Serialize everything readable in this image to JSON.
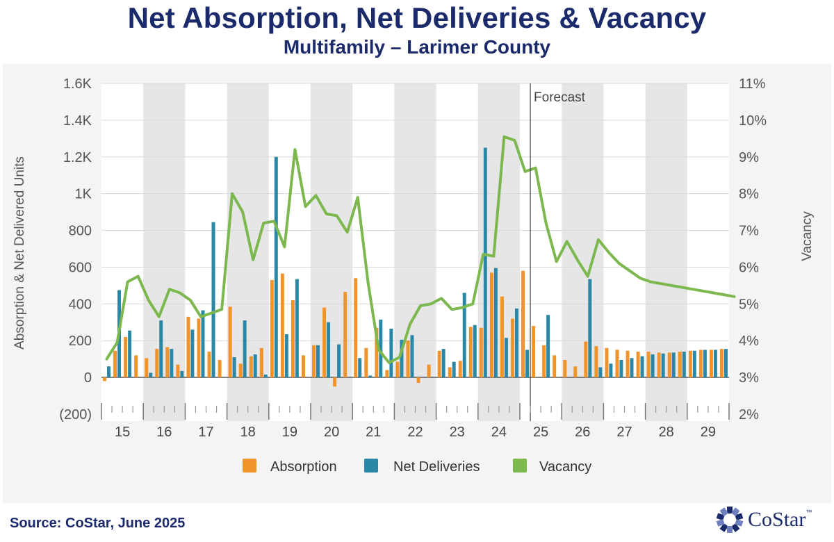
{
  "header": {
    "title": "Net Absorption, Net Deliveries & Vacancy",
    "subtitle": "Multifamily – Larimer County"
  },
  "footer": {
    "source": "Source: CoStar, June 2025",
    "logo_text": "CoStar",
    "logo_tm": "™"
  },
  "colors": {
    "absorption": "#f0932b",
    "net_deliveries": "#2a87a6",
    "vacancy": "#7cb84e",
    "title": "#1b2a6b"
  },
  "chart_data": {
    "type": "bar",
    "title": "Net Absorption, Net Deliveries & Vacancy",
    "subtitle": "Multifamily – Larimer County",
    "ylabel": "Absorption & Net Delivered Units",
    "y2label": "Vacancy",
    "ylim": [
      -200,
      1600
    ],
    "y2lim": [
      2,
      11
    ],
    "yticks": [
      "(200)",
      "0",
      "200",
      "400",
      "600",
      "800",
      "1K",
      "1.2K",
      "1.4K",
      "1.6K"
    ],
    "y2ticks": [
      "2%",
      "3%",
      "4%",
      "5%",
      "6%",
      "7%",
      "8%",
      "9%",
      "10%",
      "11%"
    ],
    "years": [
      "15",
      "16",
      "17",
      "18",
      "19",
      "20",
      "21",
      "22",
      "23",
      "24",
      "25",
      "26",
      "27",
      "28",
      "29"
    ],
    "quarters_per_year": 4,
    "forecast_label": "Forecast",
    "forecast_start_quarter": "25 Q2",
    "grid": true,
    "legend_position": "bottom",
    "series": [
      {
        "name": "Absorption",
        "type": "bar",
        "values": [
          -20,
          145,
          220,
          120,
          105,
          155,
          165,
          70,
          330,
          320,
          140,
          95,
          385,
          75,
          115,
          160,
          530,
          565,
          420,
          120,
          175,
          380,
          -50,
          465,
          540,
          160,
          270,
          40,
          85,
          200,
          -30,
          70,
          145,
          55,
          90,
          275,
          270,
          570,
          440,
          320,
          580,
          280,
          175,
          120,
          95,
          60,
          195,
          170,
          160,
          150,
          145,
          140,
          140,
          135,
          135,
          140,
          145,
          150,
          150,
          155,
          160
        ]
      },
      {
        "name": "Net Deliveries",
        "type": "bar",
        "values": [
          60,
          475,
          255,
          0,
          25,
          310,
          155,
          35,
          260,
          365,
          845,
          0,
          110,
          310,
          125,
          15,
          1200,
          235,
          535,
          0,
          175,
          300,
          180,
          0,
          105,
          10,
          315,
          265,
          205,
          230,
          0,
          0,
          155,
          85,
          460,
          285,
          1250,
          595,
          215,
          375,
          150,
          0,
          340,
          0,
          0,
          0,
          535,
          55,
          75,
          95,
          105,
          115,
          125,
          130,
          135,
          140,
          145,
          150,
          150,
          155,
          155
        ]
      },
      {
        "name": "Vacancy",
        "type": "line",
        "values": [
          3.5,
          3.95,
          5.6,
          5.75,
          5.1,
          4.65,
          5.4,
          5.3,
          5.1,
          4.65,
          4.75,
          4.85,
          8.0,
          7.5,
          6.2,
          7.2,
          7.25,
          6.55,
          9.2,
          7.65,
          7.95,
          7.45,
          7.4,
          6.95,
          7.9,
          5.55,
          3.75,
          3.4,
          3.55,
          4.45,
          4.95,
          5.0,
          5.15,
          4.85,
          4.9,
          5.0,
          6.35,
          6.3,
          9.55,
          9.45,
          8.6,
          8.7,
          7.2,
          6.15,
          6.7,
          6.2,
          5.75,
          6.75,
          6.4,
          6.1,
          5.9,
          5.7,
          5.6,
          5.55,
          5.5,
          5.45,
          5.4,
          5.35,
          5.3,
          5.25,
          5.2
        ]
      }
    ]
  }
}
